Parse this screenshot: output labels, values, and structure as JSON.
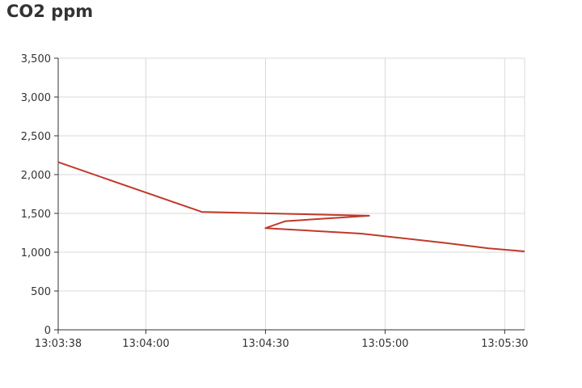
{
  "chart_data": {
    "type": "line",
    "title": "CO2 ppm",
    "xlabel": "",
    "ylabel": "",
    "x_axis": {
      "kind": "time",
      "range": [
        "13:03:38",
        "13:05:35"
      ],
      "tick_labels": [
        "13:03:38",
        "13:04:00",
        "13:04:30",
        "13:05:00",
        "13:05:30"
      ]
    },
    "y_axis": {
      "range": [
        0,
        3500
      ],
      "tick_values": [
        0,
        500,
        1000,
        1500,
        2000,
        2500,
        3000,
        3500
      ],
      "tick_labels": [
        "0",
        "500",
        "1,000",
        "1,500",
        "2,000",
        "2,500",
        "3,000",
        "3,500"
      ]
    },
    "grid": true,
    "legend": "none",
    "series": [
      {
        "color": "#c0392b",
        "points": [
          [
            "13:03:38",
            2160
          ],
          [
            "13:04:14",
            1520
          ],
          [
            "13:04:56",
            1470
          ],
          [
            "13:04:35",
            1400
          ],
          [
            "13:04:30",
            1310
          ],
          [
            "13:04:54",
            1240
          ],
          [
            "13:05:15",
            1120
          ],
          [
            "13:05:26",
            1050
          ],
          [
            "13:05:35",
            1010
          ]
        ]
      }
    ]
  }
}
